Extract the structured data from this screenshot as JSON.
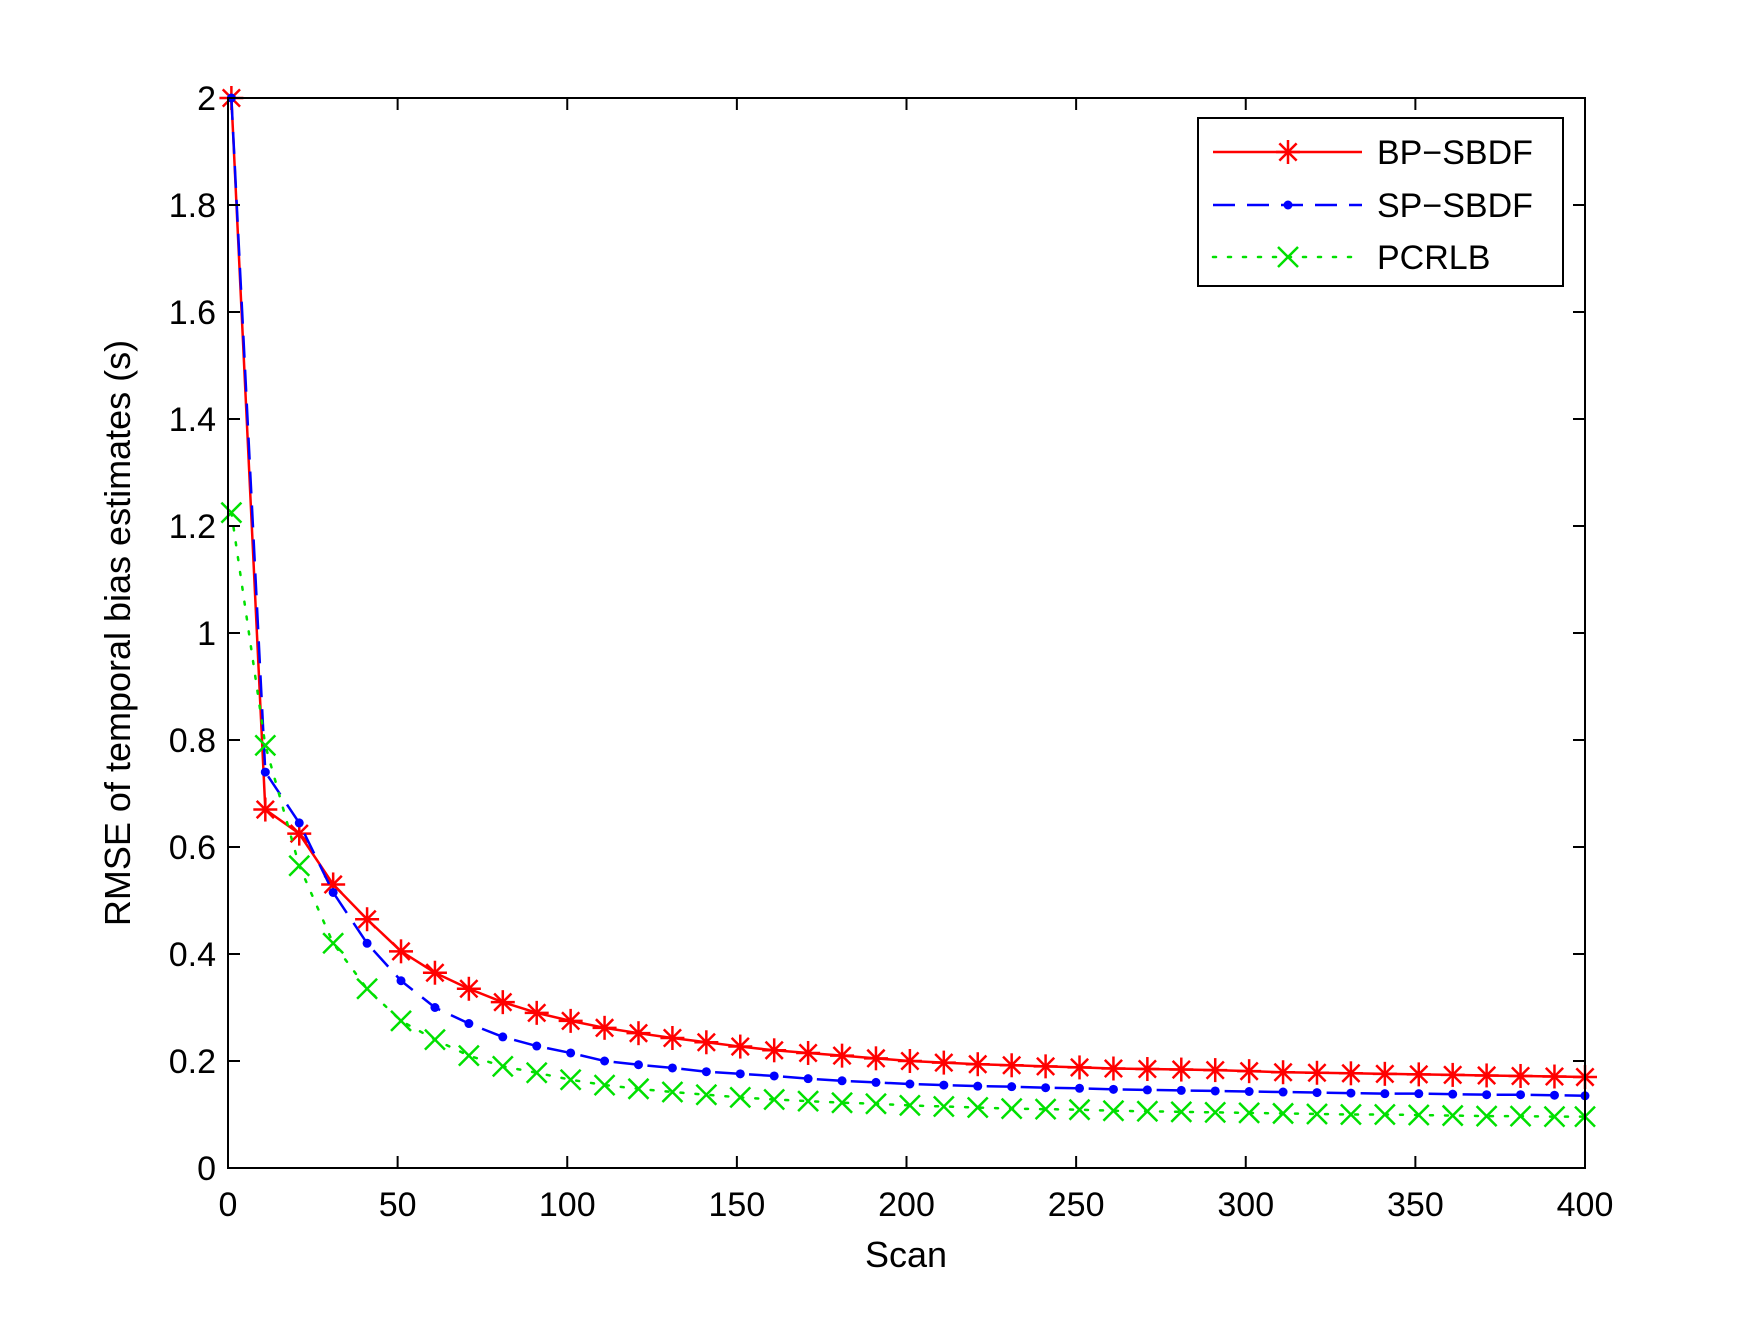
{
  "chart_data": {
    "type": "line",
    "title": "",
    "xlabel": "Scan",
    "ylabel": "RMSE of temporal bias estimates (s)",
    "xlim": [
      0,
      400
    ],
    "ylim": [
      0,
      2
    ],
    "xticks": [
      0,
      50,
      100,
      150,
      200,
      250,
      300,
      350,
      400
    ],
    "xtick_labels": [
      "0",
      "50",
      "100",
      "150",
      "200",
      "250",
      "300",
      "350",
      "400"
    ],
    "yticks": [
      0,
      0.2,
      0.4,
      0.6,
      0.8,
      1,
      1.2,
      1.4,
      1.6,
      1.8,
      2
    ],
    "ytick_labels": [
      "0",
      "0.2",
      "0.4",
      "0.6",
      "0.8",
      "1",
      "1.2",
      "1.4",
      "1.6",
      "1.8",
      "2"
    ],
    "grid": false,
    "legend_position": "top-right",
    "x": [
      1,
      11,
      21,
      31,
      41,
      51,
      61,
      71,
      81,
      91,
      101,
      111,
      121,
      131,
      141,
      151,
      161,
      171,
      181,
      191,
      201,
      211,
      221,
      231,
      241,
      251,
      261,
      271,
      281,
      291,
      301,
      311,
      321,
      331,
      341,
      351,
      361,
      371,
      381,
      391,
      400
    ],
    "series": [
      {
        "name": "BP−SBDF",
        "color": "#ff0000",
        "line_style": "solid",
        "marker": "asterisk",
        "values": [
          2.0,
          0.67,
          0.625,
          0.53,
          0.465,
          0.405,
          0.365,
          0.335,
          0.31,
          0.29,
          0.275,
          0.262,
          0.252,
          0.243,
          0.235,
          0.227,
          0.22,
          0.215,
          0.21,
          0.205,
          0.2,
          0.197,
          0.194,
          0.192,
          0.19,
          0.188,
          0.186,
          0.185,
          0.184,
          0.183,
          0.181,
          0.179,
          0.178,
          0.177,
          0.176,
          0.175,
          0.174,
          0.173,
          0.172,
          0.171,
          0.17
        ]
      },
      {
        "name": "SP−SBDF",
        "color": "#0000ff",
        "line_style": "dashed",
        "marker": "point",
        "values": [
          2.0,
          0.74,
          0.645,
          0.515,
          0.42,
          0.35,
          0.3,
          0.27,
          0.245,
          0.228,
          0.215,
          0.2,
          0.193,
          0.187,
          0.18,
          0.176,
          0.172,
          0.167,
          0.163,
          0.16,
          0.157,
          0.155,
          0.153,
          0.152,
          0.15,
          0.149,
          0.147,
          0.146,
          0.145,
          0.144,
          0.143,
          0.142,
          0.141,
          0.14,
          0.139,
          0.139,
          0.138,
          0.137,
          0.137,
          0.136,
          0.135
        ]
      },
      {
        "name": "PCRLB",
        "color": "#00e000",
        "line_style": "dotted",
        "marker": "x",
        "values": [
          1.225,
          0.79,
          0.565,
          0.42,
          0.335,
          0.275,
          0.24,
          0.21,
          0.19,
          0.178,
          0.165,
          0.155,
          0.148,
          0.142,
          0.137,
          0.132,
          0.128,
          0.125,
          0.122,
          0.12,
          0.117,
          0.115,
          0.113,
          0.111,
          0.11,
          0.109,
          0.107,
          0.106,
          0.105,
          0.104,
          0.103,
          0.102,
          0.101,
          0.1,
          0.1,
          0.099,
          0.098,
          0.097,
          0.097,
          0.096,
          0.096
        ]
      }
    ]
  }
}
